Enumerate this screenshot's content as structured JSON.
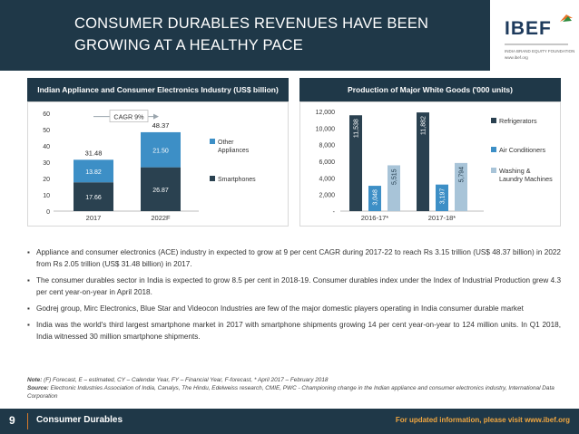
{
  "header": {
    "title_line1": "CONSUMER DURABLES REVENUES HAVE BEEN",
    "title_line2": "GROWING AT A HEALTHY PACE",
    "logo_text": "IBEF",
    "logo_tagline": "INDIA BRAND EQUITY FOUNDATION",
    "logo_url": "www.ibef.org"
  },
  "colors": {
    "navy": "#1f3848",
    "dark_series": "#2a4150",
    "blue_series": "#3d8fc6",
    "light_series": "#a8c4d8",
    "accent_orange": "#f0a640"
  },
  "chart_data": [
    {
      "type": "bar",
      "stacked": true,
      "title": "Indian Appliance and Consumer Electronics Industry (US$ billion)",
      "categories": [
        "2017",
        "2022F"
      ],
      "series": [
        {
          "name": "Smartphones",
          "values": [
            17.66,
            26.87
          ]
        },
        {
          "name": "Other Appliances",
          "values": [
            13.82,
            21.5
          ]
        }
      ],
      "totals": [
        31.48,
        48.37
      ],
      "annotation": "CAGR 9%",
      "ylim": [
        0,
        60
      ],
      "yticks": [
        0,
        10,
        20,
        30,
        40,
        50,
        60
      ],
      "legend_position": "right",
      "legend_order": [
        "Other Appliances",
        "Smartphones"
      ]
    },
    {
      "type": "bar",
      "grouped": true,
      "title": "Production of Major White Goods ('000 units)",
      "categories": [
        "2016-17*",
        "2017-18*"
      ],
      "series": [
        {
          "name": "Refrigerators",
          "values": [
            11538,
            11882
          ]
        },
        {
          "name": "Air Conditioners",
          "values": [
            3048,
            3197
          ]
        },
        {
          "name": "Washing & Laundry Machines",
          "values": [
            5515,
            5794
          ]
        }
      ],
      "value_labels": {
        "Refrigerators": [
          "11,538",
          "11,882"
        ],
        "Air Conditioners": [
          "3,048",
          "3,197"
        ],
        "Washing & Laundry Machines": [
          "5,515",
          "5,794"
        ]
      },
      "ylim": [
        0,
        12000
      ],
      "yticks": [
        0,
        2000,
        4000,
        6000,
        8000,
        10000,
        12000
      ],
      "ytick_labels": [
        "-",
        "2,000",
        "4,000",
        "6,000",
        "8,000",
        "10,000",
        "12,000"
      ],
      "legend_position": "right"
    }
  ],
  "chart1_labels": {
    "title": "Indian Appliance and Consumer Electronics Industry (US$ billion)",
    "cagr": "CAGR 9%",
    "legend_other": "Other Appliances",
    "legend_smartphones": "Smartphones"
  },
  "chart2_labels": {
    "title": "Production of Major White Goods ('000 units)",
    "legend_refrigerators": "Refrigerators",
    "legend_ac": "Air Conditioners",
    "legend_washing": "Washing & Laundry Machines"
  },
  "bullets": [
    "Appliance and consumer electronics (ACE) industry in expected to grow at 9 per cent CAGR during 2017-22 to reach Rs 3.15 trillion (US$ 48.37 billion) in 2022 from Rs 2.05 trillion (US$ 31.48 billion) in 2017.",
    "The consumer durables sector in India is expected to grow 8.5 per cent in 2018-19. Consumer durables index under the Index of Industrial Production grew 4.3 per cent year-on-year in April 2018.",
    "Godrej group, Mirc Electronics, Blue Star and Videocon Industries are few of the major domestic players operating in India consumer durable market",
    "India was the world's third largest smartphone market in 2017 with smartphone shipments growing 14 per cent year-on-year to 124 million units. In Q1 2018, India witnessed 30 million smartphone shipments."
  ],
  "note": {
    "note_label": "Note:",
    "note_text": "(F) Forecast, E – estimated, CY – Calendar Year, FY – Financial Year, F-forecast, * April 2017 – February 2018",
    "source_label": "Source:",
    "source_text": "Electronic Industries Association of India, Canalys, The Hindu, Edelweiss research, CMIE, PWC - Championing change in the Indian appliance and consumer electronics industry, International Data Corporation"
  },
  "footer": {
    "page_number": "9",
    "section_title": "Consumer Durables",
    "visit_text": "For updated information, please visit www.ibef.org"
  }
}
